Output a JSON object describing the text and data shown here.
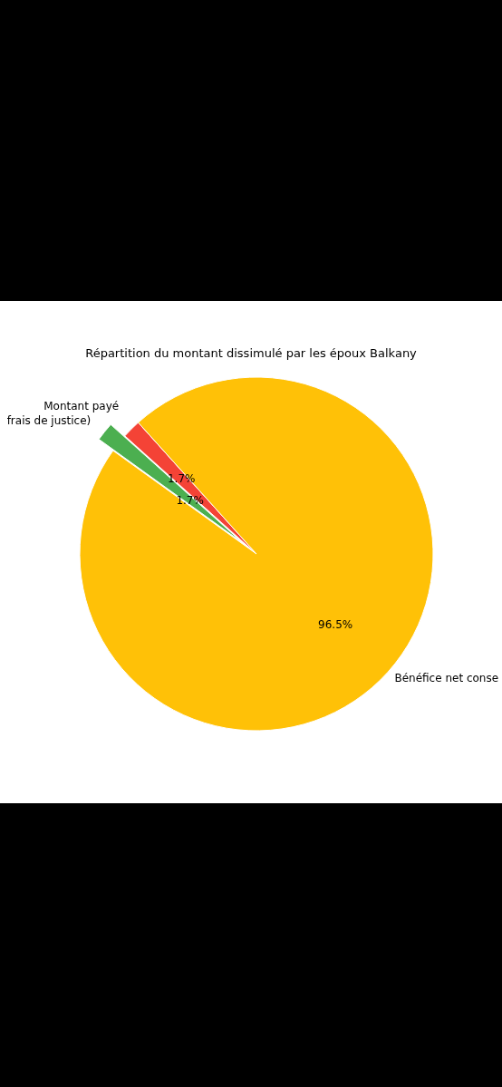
{
  "chart_data": {
    "type": "pie",
    "title": "Répartition du montant dissimulé par les époux Balkany",
    "categories": [
      "Montant payé",
      "frais de justice)",
      "Bénéfice net conse"
    ],
    "values": [
      1.7,
      1.7,
      96.5
    ],
    "value_labels": [
      "1.7%",
      "1.7%",
      "96.5%"
    ],
    "colors": [
      "#f44336",
      "#4caf50",
      "#ffc107"
    ]
  }
}
